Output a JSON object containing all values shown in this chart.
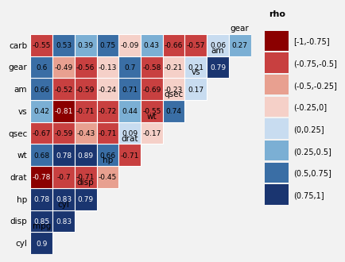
{
  "variables": [
    "mpg",
    "cyl",
    "disp",
    "hp",
    "drat",
    "wt",
    "qsec",
    "vs",
    "am",
    "gear",
    "carb"
  ],
  "corr_matrix": {
    "cyl": {
      "mpg": 0.9
    },
    "disp": {
      "mpg": 0.85,
      "cyl": 0.83
    },
    "hp": {
      "mpg": 0.78,
      "cyl": 0.83,
      "disp": 0.79
    },
    "drat": {
      "mpg": -0.78,
      "cyl": -0.7,
      "disp": -0.71,
      "hp": -0.45
    },
    "wt": {
      "mpg": 0.68,
      "cyl": 0.78,
      "disp": 0.89,
      "hp": 0.66,
      "drat": -0.71
    },
    "qsec": {
      "mpg": -0.67,
      "cyl": -0.59,
      "disp": -0.43,
      "hp": -0.71,
      "drat": 0.09,
      "wt": -0.17
    },
    "vs": {
      "mpg": 0.42,
      "cyl": -0.81,
      "disp": -0.71,
      "hp": -0.72,
      "drat": 0.44,
      "wt": -0.55,
      "qsec": 0.74
    },
    "am": {
      "mpg": 0.66,
      "cyl": -0.52,
      "disp": -0.59,
      "hp": -0.24,
      "drat": 0.71,
      "wt": -0.69,
      "qsec": -0.23,
      "vs": 0.17
    },
    "gear": {
      "mpg": 0.6,
      "cyl": -0.49,
      "disp": -0.56,
      "hp": -0.13,
      "drat": 0.7,
      "wt": -0.58,
      "qsec": -0.21,
      "vs": 0.21,
      "am": 0.79
    },
    "carb": {
      "mpg": -0.55,
      "cyl": 0.53,
      "disp": 0.39,
      "hp": 0.75,
      "drat": -0.09,
      "wt": 0.43,
      "qsec": -0.66,
      "vs": -0.57,
      "am": 0.06,
      "gear": 0.27
    }
  },
  "legend_labels": [
    "[-1,-0.75]",
    "(-0.75,-0.5]",
    "(-0.5,-0.25]",
    "(-0.25,0]",
    "(0,0.25]",
    "(0.25,0.5]",
    "(0.5,0.75]",
    "(0.75,1]"
  ],
  "legend_colors": [
    "#8B0000",
    "#C84040",
    "#E8A090",
    "#F5D0C8",
    "#C8DCF0",
    "#7BAFD4",
    "#3A6EA5",
    "#1A3570"
  ],
  "background_color": "#F2F2F2",
  "title": "rho",
  "fontsize_cell": 6.5,
  "fontsize_label": 7.5,
  "fontsize_legend": 7,
  "fontsize_title": 8
}
